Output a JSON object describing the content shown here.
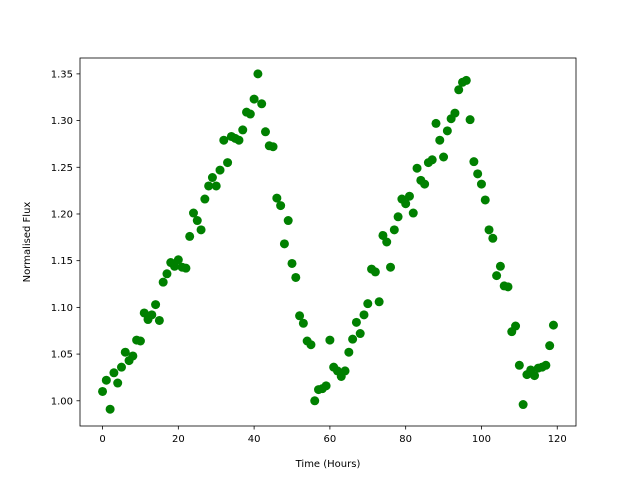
{
  "chart_data": {
    "type": "scatter",
    "xlabel": "Time (Hours)",
    "ylabel": "Normalised Flux",
    "color": "#008000",
    "xlim": [
      -5.95,
      124.95
    ],
    "ylim": [
      0.973,
      1.367
    ],
    "xticks": [
      0,
      20,
      40,
      60,
      80,
      100,
      120
    ],
    "yticks": [
      {
        "value": 1.0,
        "label": "1.00"
      },
      {
        "value": 1.05,
        "label": "1.05"
      },
      {
        "value": 1.1,
        "label": "1.10"
      },
      {
        "value": 1.15,
        "label": "1.15"
      },
      {
        "value": 1.2,
        "label": "1.20"
      },
      {
        "value": 1.25,
        "label": "1.25"
      },
      {
        "value": 1.3,
        "label": "1.30"
      },
      {
        "value": 1.35,
        "label": "1.35"
      }
    ],
    "x": [
      0,
      1,
      2,
      3,
      4,
      5,
      6,
      7,
      8,
      9,
      10,
      11,
      12,
      13,
      14,
      15,
      16,
      17,
      18,
      19,
      20,
      21,
      22,
      23,
      24,
      25,
      26,
      27,
      28,
      29,
      30,
      31,
      32,
      33,
      34,
      35,
      36,
      37,
      38,
      39,
      40,
      41,
      42,
      43,
      44,
      45,
      46,
      47,
      48,
      49,
      50,
      51,
      52,
      53,
      54,
      55,
      56,
      57,
      58,
      59,
      60,
      61,
      62,
      63,
      64,
      65,
      66,
      67,
      68,
      69,
      70,
      71,
      72,
      73,
      74,
      75,
      76,
      77,
      78,
      79,
      80,
      81,
      82,
      83,
      84,
      85,
      86,
      87,
      88,
      89,
      90,
      91,
      92,
      93,
      94,
      95,
      96,
      97,
      98,
      99,
      100,
      101,
      102,
      103,
      104,
      105,
      106,
      107,
      108,
      109,
      110,
      111,
      112,
      113,
      114,
      115,
      116,
      117,
      118,
      119
    ],
    "values": [
      1.01,
      1.022,
      0.991,
      1.03,
      1.019,
      1.036,
      1.052,
      1.043,
      1.048,
      1.065,
      1.064,
      1.094,
      1.087,
      1.092,
      1.103,
      1.086,
      1.127,
      1.136,
      1.148,
      1.144,
      1.151,
      1.143,
      1.142,
      1.176,
      1.201,
      1.193,
      1.183,
      1.216,
      1.23,
      1.239,
      1.23,
      1.247,
      1.279,
      1.255,
      1.283,
      1.281,
      1.279,
      1.29,
      1.309,
      1.307,
      1.323,
      1.35,
      1.318,
      1.288,
      1.273,
      1.272,
      1.217,
      1.209,
      1.168,
      1.193,
      1.147,
      1.132,
      1.091,
      1.083,
      1.064,
      1.06,
      1.0,
      1.012,
      1.013,
      1.016,
      1.065,
      1.036,
      1.032,
      1.026,
      1.032,
      1.052,
      1.066,
      1.084,
      1.072,
      1.092,
      1.104,
      1.141,
      1.138,
      1.106,
      1.177,
      1.17,
      1.143,
      1.183,
      1.197,
      1.216,
      1.211,
      1.219,
      1.201,
      1.249,
      1.236,
      1.232,
      1.255,
      1.258,
      1.297,
      1.279,
      1.261,
      1.289,
      1.302,
      1.308,
      1.333,
      1.341,
      1.343,
      1.301,
      1.256,
      1.243,
      1.232,
      1.215,
      1.183,
      1.174,
      1.134,
      1.144,
      1.123,
      1.122,
      1.074,
      1.08,
      1.038,
      0.996,
      1.028,
      1.033,
      1.027,
      1.035,
      1.036,
      1.038,
      1.059,
      1.081
    ]
  }
}
